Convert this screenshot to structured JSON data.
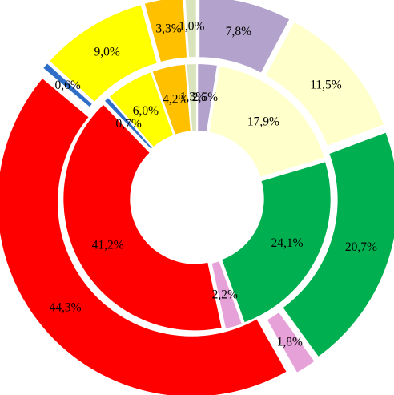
{
  "chart_data": {
    "type": "pie",
    "variant": "double-donut-exploded",
    "title": "",
    "legend": "none",
    "start_angle_deg": 0,
    "direction": "clockwise",
    "series": [
      {
        "ring": "inner",
        "segments": [
          {
            "label": "2,5%",
            "value": 2.5,
            "color": "#b3a3cc"
          },
          {
            "label": "17,9%",
            "value": 17.9,
            "color": "#ffffcc"
          },
          {
            "label": "24,1%",
            "value": 24.1,
            "color": "#00b050"
          },
          {
            "label": "2,2%",
            "value": 2.2,
            "color": "#e6a1d8"
          },
          {
            "label": "41,2%",
            "value": 41.2,
            "color": "#ff0000"
          },
          {
            "label": "0,7%",
            "value": 0.7,
            "color": "#2e6ec9"
          },
          {
            "label": "6,0%",
            "value": 6.0,
            "color": "#ffff00"
          },
          {
            "label": "4,2%",
            "value": 4.2,
            "color": "#ffc000"
          },
          {
            "label": "1,3%",
            "value": 1.3,
            "color": "#d9e4bc"
          }
        ]
      },
      {
        "ring": "outer",
        "segments": [
          {
            "label": "7,8%",
            "value": 7.8,
            "color": "#b3a3cc"
          },
          {
            "label": "11,5%",
            "value": 11.5,
            "color": "#ffffcc"
          },
          {
            "label": "20,7%",
            "value": 20.7,
            "color": "#00b050"
          },
          {
            "label": "1,8%",
            "value": 1.8,
            "color": "#e6a1d8"
          },
          {
            "label": "44,3%",
            "value": 44.3,
            "color": "#ff0000"
          },
          {
            "label": "0,6%",
            "value": 0.6,
            "color": "#2e6ec9"
          },
          {
            "label": "9,0%",
            "value": 9.0,
            "color": "#ffff00"
          },
          {
            "label": "3,3%",
            "value": 3.3,
            "color": "#ffc000"
          },
          {
            "label": "1,0%",
            "value": 1.0,
            "color": "#d9e4bc"
          }
        ]
      }
    ]
  }
}
